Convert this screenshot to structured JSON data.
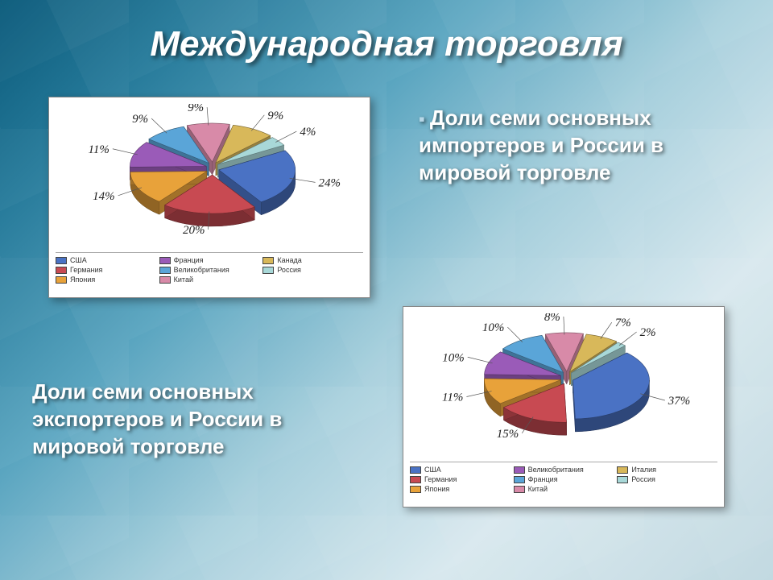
{
  "title": "Международная торговля",
  "caption_importers": "Доли семи основных импортеров и России в мировой торговле",
  "caption_exporters": "Доли семи основных экспортеров и России в мировой торговле",
  "chart_importers": {
    "type": "pie-3d-exploded",
    "background_color": "#ffffff",
    "border_color": "#888888",
    "label_fontsize": 15,
    "label_fontfamily": "Georgia, serif",
    "label_fontstyle": "italic",
    "slices": [
      {
        "country": "США",
        "value": 24,
        "color": "#4a72c4",
        "label": "24%"
      },
      {
        "country": "Германия",
        "value": 20,
        "color": "#c84a52",
        "label": "20%"
      },
      {
        "country": "Япония",
        "value": 14,
        "color": "#e8a23a",
        "label": "14%"
      },
      {
        "country": "Франция",
        "value": 11,
        "color": "#9a5bb8",
        "label": "11%"
      },
      {
        "country": "Великобритания",
        "value": 9,
        "color": "#5aa5d8",
        "label": "9%"
      },
      {
        "country": "Китай",
        "value": 9,
        "color": "#d88aa8",
        "label": "9%"
      },
      {
        "country": "Канада",
        "value": 9,
        "color": "#d8b85a",
        "label": "9%"
      },
      {
        "country": "Россия",
        "value": 4,
        "color": "#a8d8d8",
        "label": "4%"
      }
    ],
    "legend": [
      {
        "label": "США",
        "color": "#4a72c4"
      },
      {
        "label": "Франция",
        "color": "#9a5bb8"
      },
      {
        "label": "Канада",
        "color": "#d8b85a"
      },
      {
        "label": "Германия",
        "color": "#c84a52"
      },
      {
        "label": "Великобритания",
        "color": "#5aa5d8"
      },
      {
        "label": "Россия",
        "color": "#a8d8d8"
      },
      {
        "label": "Япония",
        "color": "#e8a23a"
      },
      {
        "label": "Китай",
        "color": "#d88aa8"
      }
    ]
  },
  "chart_exporters": {
    "type": "pie-3d-exploded",
    "background_color": "#ffffff",
    "border_color": "#888888",
    "label_fontsize": 15,
    "label_fontfamily": "Georgia, serif",
    "label_fontstyle": "italic",
    "slices": [
      {
        "country": "США",
        "value": 37,
        "color": "#4a72c4",
        "label": "37%"
      },
      {
        "country": "Германия",
        "value": 15,
        "color": "#c84a52",
        "label": "15%"
      },
      {
        "country": "Япония",
        "value": 11,
        "color": "#e8a23a",
        "label": "11%"
      },
      {
        "country": "Великобритания",
        "value": 10,
        "color": "#9a5bb8",
        "label": "10%"
      },
      {
        "country": "Франция",
        "value": 10,
        "color": "#5aa5d8",
        "label": "10%"
      },
      {
        "country": "Китай",
        "value": 8,
        "color": "#d88aa8",
        "label": "8%"
      },
      {
        "country": "Италия",
        "value": 7,
        "color": "#d8b85a",
        "label": "7%"
      },
      {
        "country": "Россия",
        "value": 2,
        "color": "#a8d8d8",
        "label": "2%"
      }
    ],
    "legend": [
      {
        "label": "США",
        "color": "#4a72c4"
      },
      {
        "label": "Великобритания",
        "color": "#9a5bb8"
      },
      {
        "label": "Италия",
        "color": "#d8b85a"
      },
      {
        "label": "Германия",
        "color": "#c84a52"
      },
      {
        "label": "Франция",
        "color": "#5aa5d8"
      },
      {
        "label": "Россия",
        "color": "#a8d8d8"
      },
      {
        "label": "Япония",
        "color": "#e8a23a"
      },
      {
        "label": "Китай",
        "color": "#d88aa8"
      }
    ]
  }
}
